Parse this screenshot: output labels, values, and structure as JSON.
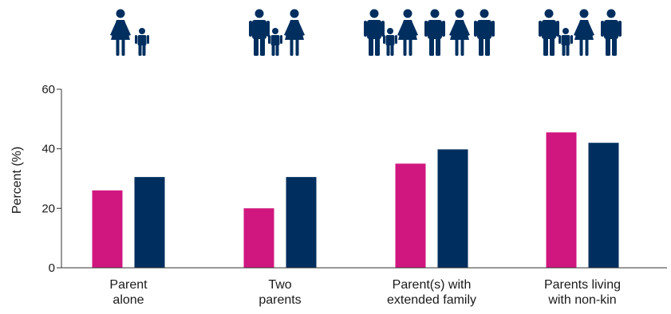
{
  "chart_data": {
    "type": "bar",
    "title": "",
    "xlabel": "",
    "ylabel": "Percent (%)",
    "ylim": [
      0,
      60
    ],
    "yticks": [
      0,
      20,
      40,
      60
    ],
    "grid": false,
    "categories": [
      [
        "Parent",
        "alone"
      ],
      [
        "Two",
        "parents"
      ],
      [
        "Parent(s) with",
        "extended family"
      ],
      [
        "Parents living",
        "with non-kin"
      ]
    ],
    "series": [
      {
        "color": "#d0177f",
        "values": [
          26,
          20,
          35,
          45.5
        ]
      },
      {
        "color": "#002f5f",
        "values": [
          30.5,
          30.5,
          39.8,
          42
        ]
      }
    ],
    "category_icons": [
      [
        "woman",
        "child"
      ],
      [
        "man",
        "child",
        "woman"
      ],
      [
        "man",
        "child",
        "woman",
        "man",
        "woman",
        "man"
      ],
      [
        "man",
        "child",
        "woman",
        "man"
      ]
    ],
    "icon_color": "#002f5f"
  }
}
